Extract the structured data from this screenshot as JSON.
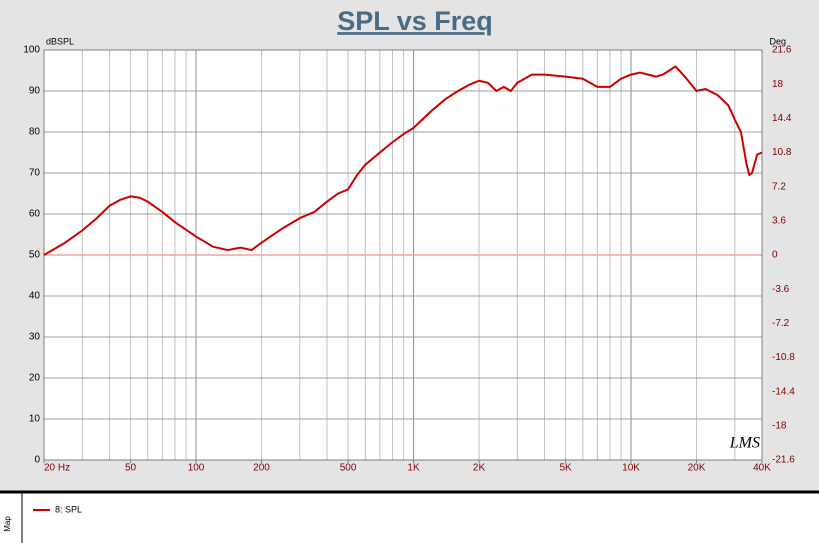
{
  "chart_data": {
    "type": "line",
    "title": "SPL vs Freq",
    "y_label": "dBSPL",
    "y2_label": "Deg",
    "x": [
      20,
      25,
      30,
      35,
      40,
      45,
      50,
      55,
      60,
      70,
      80,
      100,
      120,
      140,
      160,
      180,
      200,
      250,
      300,
      350,
      400,
      450,
      500,
      550,
      600,
      700,
      800,
      900,
      1000,
      1200,
      1400,
      1600,
      1800,
      2000,
      2200,
      2400,
      2600,
      2800,
      3000,
      3500,
      4000,
      5000,
      6000,
      7000,
      8000,
      9000,
      10000,
      11000,
      12000,
      13000,
      14000,
      15000,
      16000,
      17000,
      18000,
      20000,
      22000,
      25000,
      28000,
      30000,
      32000,
      34000,
      35000,
      36000,
      38000,
      40000
    ],
    "series": [
      {
        "name": "8: SPL",
        "color": "#cc0000",
        "values": [
          50,
          53,
          56,
          59,
          62,
          63.5,
          64.3,
          64,
          63,
          60.5,
          58,
          54.5,
          52,
          51.2,
          51.8,
          51.2,
          53,
          56.5,
          59,
          60.5,
          63,
          65,
          66,
          69.5,
          72,
          75,
          77.5,
          79.5,
          81,
          85,
          88,
          90,
          91.5,
          92.5,
          92,
          90,
          91,
          90,
          92,
          94,
          94,
          93.5,
          93,
          91,
          91,
          93,
          94,
          94.5,
          94,
          93.5,
          94,
          95,
          96,
          94.5,
          93,
          90,
          90.5,
          89,
          86.5,
          83,
          80,
          72,
          69.5,
          70,
          74.5,
          75
        ]
      }
    ],
    "xlim": [
      20,
      40000
    ],
    "xscale": "log",
    "xticks": [
      {
        "value": 20,
        "label": "20  Hz"
      },
      50,
      100,
      200,
      500,
      {
        "value": 1000,
        "label": "1K"
      },
      {
        "value": 2000,
        "label": "2K"
      },
      {
        "value": 5000,
        "label": "5K"
      },
      {
        "value": 10000,
        "label": "10K"
      },
      {
        "value": 20000,
        "label": "20K"
      },
      {
        "value": 40000,
        "label": "40K"
      }
    ],
    "ylim": [
      0,
      100
    ],
    "yticks": [
      0,
      10,
      20,
      30,
      40,
      50,
      60,
      70,
      80,
      90,
      100
    ],
    "y2lim": [
      -21.6,
      21.6
    ],
    "y2ticks": [
      21.6,
      18,
      14.4,
      10.8,
      7.2,
      3.6,
      0,
      -3.6,
      -7.2,
      -10.8,
      -14.4,
      -18,
      -21.6
    ],
    "y2_zero_line_color": "#f4a0a0",
    "grid": true,
    "logo": "LMS",
    "panel_label": "Map"
  }
}
